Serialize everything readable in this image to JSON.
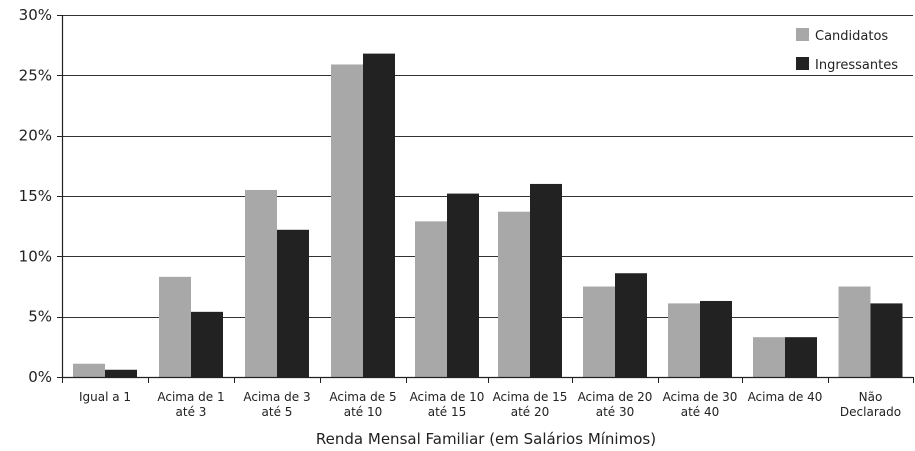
{
  "chart_data": {
    "type": "bar",
    "title": "",
    "xlabel": "Renda Mensal Familiar (em Salários Mínimos)",
    "ylabel": "",
    "ylim": [
      0,
      30
    ],
    "yticks": [
      0,
      5,
      10,
      15,
      20,
      25,
      30
    ],
    "ytick_labels": [
      "0%",
      "5%",
      "10%",
      "15%",
      "20%",
      "25%",
      "30%"
    ],
    "grid": "horizontal",
    "legend_position": "top-right",
    "categories": [
      [
        "Igual a  1"
      ],
      [
        "Acima de 1",
        "até 3"
      ],
      [
        "Acima de 3",
        "até 5"
      ],
      [
        "Acima de 5",
        "até 10"
      ],
      [
        "Acima de 10",
        "até 15"
      ],
      [
        "Acima de 15",
        "até 20"
      ],
      [
        "Acima de 20",
        "até 30"
      ],
      [
        "Acima de 30",
        "até 40"
      ],
      [
        "Acima de 40"
      ],
      [
        "Não",
        "Declarado"
      ]
    ],
    "series": [
      {
        "name": "Candidatos",
        "color": "#a8a8a8",
        "values": [
          1.1,
          8.3,
          15.5,
          25.9,
          12.9,
          13.7,
          7.5,
          6.1,
          3.3,
          7.5
        ]
      },
      {
        "name": "Ingressantes",
        "color": "#222222",
        "values": [
          0.6,
          5.4,
          12.2,
          26.8,
          15.2,
          16.0,
          8.6,
          6.3,
          3.3,
          6.1
        ]
      }
    ]
  }
}
